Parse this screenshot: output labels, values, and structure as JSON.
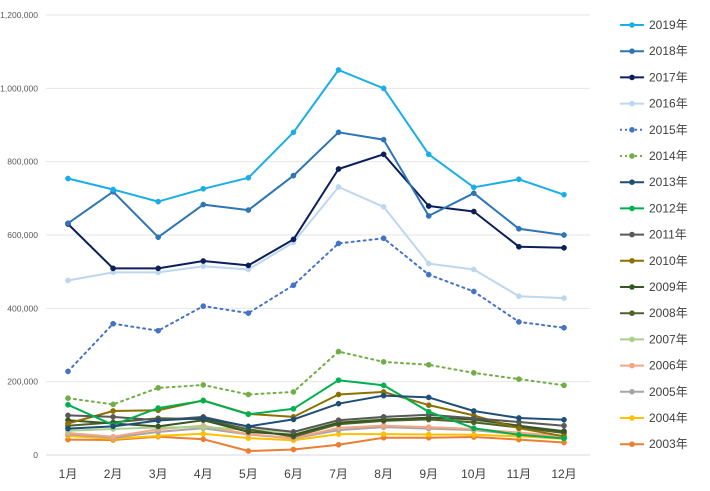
{
  "chart_data": {
    "type": "line",
    "categories": [
      "1月",
      "2月",
      "3月",
      "4月",
      "5月",
      "6月",
      "7月",
      "8月",
      "9月",
      "10月",
      "11月",
      "12月"
    ],
    "ylim": [
      0,
      1200000
    ],
    "y_ticks": [
      0,
      200000,
      400000,
      600000,
      800000,
      1000000,
      1200000
    ],
    "y_tick_labels": [
      "0",
      "200,000",
      "400,000",
      "600,000",
      "800,000",
      "1,000,000",
      "1,200,000"
    ],
    "grid": true,
    "legend_position": "right",
    "series": [
      {
        "name": "2019年",
        "color": "#1aaee6",
        "dash": false,
        "values": [
          754000,
          724000,
          691000,
          726000,
          756000,
          880000,
          1050000,
          1000000,
          820000,
          730000,
          752000,
          710000
        ]
      },
      {
        "name": "2018年",
        "color": "#2e75b6",
        "dash": false,
        "values": [
          632000,
          718000,
          594000,
          683000,
          668000,
          762000,
          880000,
          860000,
          652000,
          714000,
          617000,
          600000
        ]
      },
      {
        "name": "2017年",
        "color": "#0b1f5c",
        "dash": false,
        "values": [
          630000,
          509000,
          509000,
          529000,
          517000,
          588000,
          780000,
          820000,
          679000,
          664000,
          568000,
          565000
        ]
      },
      {
        "name": "2016年",
        "color": "#bdd7ee",
        "dash": false,
        "values": [
          476000,
          498000,
          498000,
          515000,
          506000,
          580000,
          731000,
          677000,
          522000,
          506000,
          433000,
          428000
        ]
      },
      {
        "name": "2015年",
        "color": "#4472c4",
        "dash": true,
        "values": [
          228000,
          358000,
          339000,
          406000,
          387000,
          463000,
          577000,
          591000,
          492000,
          446000,
          363000,
          347000
        ]
      },
      {
        "name": "2014年",
        "color": "#70ad47",
        "dash": true,
        "values": [
          155000,
          138000,
          183000,
          191000,
          165000,
          172000,
          282000,
          254000,
          246000,
          224000,
          207000,
          190000
        ]
      },
      {
        "name": "2013年",
        "color": "#1f4e79",
        "dash": false,
        "values": [
          72000,
          78000,
          94000,
          101000,
          78000,
          97000,
          140000,
          162000,
          157000,
          120000,
          101000,
          96000
        ]
      },
      {
        "name": "2012年",
        "color": "#00b050",
        "dash": false,
        "values": [
          137000,
          82000,
          128000,
          148000,
          111000,
          126000,
          204000,
          190000,
          118000,
          73000,
          55000,
          45000
        ]
      },
      {
        "name": "2011年",
        "color": "#595959",
        "dash": false,
        "values": [
          108000,
          104000,
          95000,
          104000,
          77000,
          63000,
          95000,
          104000,
          110000,
          100000,
          90000,
          80000
        ]
      },
      {
        "name": "2010年",
        "color": "#8c7000",
        "dash": false,
        "values": [
          86000,
          120000,
          122000,
          149000,
          112000,
          104000,
          165000,
          172000,
          136000,
          108000,
          73000,
          51000
        ]
      },
      {
        "name": "2009年",
        "color": "#375623",
        "dash": false,
        "values": [
          95000,
          86000,
          78000,
          95000,
          63000,
          55000,
          88000,
          96000,
          102000,
          97000,
          80000,
          65000
        ]
      },
      {
        "name": "2008年",
        "color": "#4f6228",
        "dash": false,
        "values": [
          80000,
          89000,
          100000,
          98000,
          70000,
          50000,
          84000,
          93000,
          97000,
          89000,
          75000,
          60000
        ]
      },
      {
        "name": "2007年",
        "color": "#a9d18e",
        "dash": false,
        "values": [
          66000,
          71000,
          75000,
          76000,
          69000,
          62000,
          93000,
          99000,
          96000,
          91000,
          75000,
          64000
        ]
      },
      {
        "name": "2006年",
        "color": "#f4a582",
        "dash": false,
        "values": [
          60000,
          50000,
          70000,
          80000,
          57000,
          46000,
          74000,
          80000,
          76000,
          71000,
          61000,
          51000
        ]
      },
      {
        "name": "2005年",
        "color": "#a6a6a6",
        "dash": false,
        "values": [
          57000,
          47000,
          63000,
          73000,
          56000,
          45000,
          68000,
          76000,
          72000,
          68000,
          56000,
          48000
        ]
      },
      {
        "name": "2004年",
        "color": "#ffc000",
        "dash": false,
        "values": [
          52000,
          44000,
          52000,
          58000,
          46000,
          40000,
          57000,
          57000,
          56000,
          55000,
          51000,
          44000
        ]
      },
      {
        "name": "2003年",
        "color": "#ed7d31",
        "dash": false,
        "values": [
          42000,
          41000,
          50000,
          43000,
          11000,
          15000,
          28000,
          47000,
          47000,
          49000,
          42000,
          34000
        ]
      }
    ]
  }
}
